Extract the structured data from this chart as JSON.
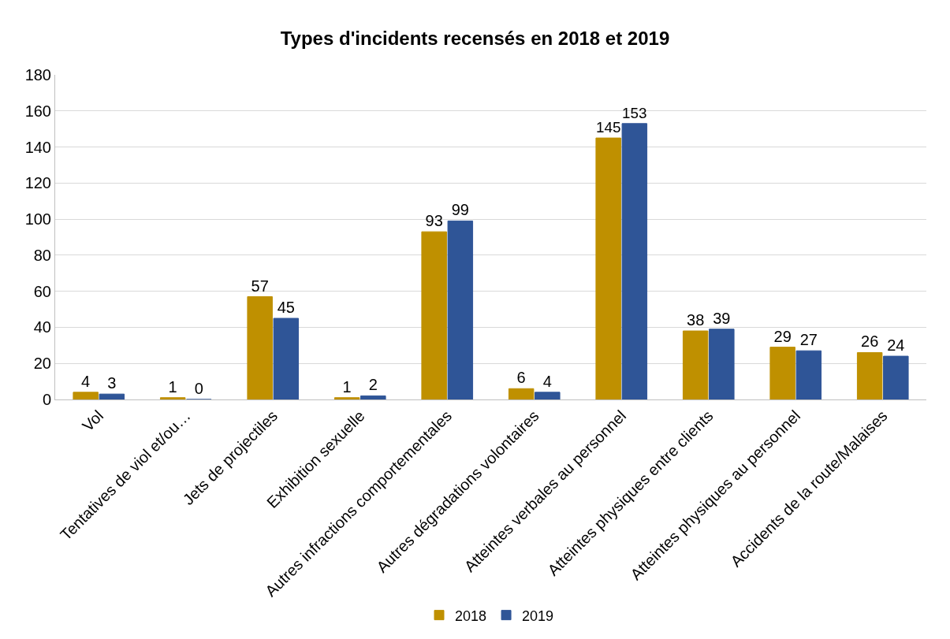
{
  "chart_data": {
    "type": "bar",
    "title": "Types d'incidents recensés en 2018 et 2019",
    "categories": [
      "Vol",
      "Tentatives de viol et/ou…",
      "Jets de projectiles",
      "Exhibition sexuelle",
      "Autres infractions comportementales",
      "Autres dégradations volontaires",
      "Atteintes verbales au personnel",
      "Atteintes physiques entre clients",
      "Atteintes physiques au personnel",
      "Accidents de la route/Malaises"
    ],
    "series": [
      {
        "name": "2018",
        "color": "#bf9000",
        "values": [
          4,
          1,
          57,
          1,
          93,
          6,
          145,
          38,
          29,
          26
        ]
      },
      {
        "name": "2019",
        "color": "#2f5597",
        "values": [
          3,
          0,
          45,
          2,
          99,
          4,
          153,
          39,
          27,
          24
        ]
      }
    ],
    "ylim": [
      0,
      180
    ],
    "yticks": [
      0,
      20,
      40,
      60,
      80,
      100,
      120,
      140,
      160,
      180
    ],
    "grid": "y",
    "legend": "bottom",
    "data_labels": true
  }
}
